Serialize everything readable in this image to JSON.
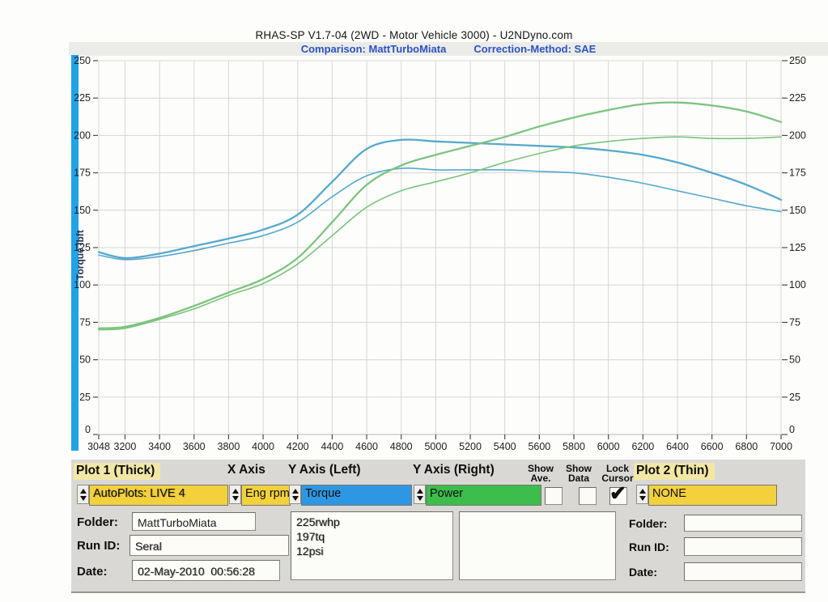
{
  "window": {
    "title": "RHAS-SP V1.7-04   (2WD - Motor Vehicle 3000) - U2NDyno.com",
    "comparison": "Comparison: MattTurboMiata",
    "correction": "Correction-Method: SAE"
  },
  "chart_data": {
    "type": "line",
    "xlabel": "Eng rpm",
    "ylabel_left": "Torque lbft",
    "ylabel_right": "Power",
    "xlim": [
      3048,
      7000
    ],
    "ylim": [
      0,
      250
    ],
    "grid": true,
    "legend": false,
    "x_ticks": [
      3048,
      3200,
      3400,
      3600,
      3800,
      4000,
      4200,
      4400,
      4600,
      4800,
      5000,
      5200,
      5400,
      5600,
      5800,
      6000,
      6200,
      6400,
      6600,
      6800,
      7000
    ],
    "y_ticks": [
      0,
      25,
      50,
      75,
      100,
      125,
      150,
      175,
      200,
      225,
      250
    ],
    "x": [
      3048,
      3200,
      3400,
      3600,
      3800,
      4000,
      4200,
      4400,
      4600,
      4800,
      5000,
      5200,
      5400,
      5600,
      5800,
      6000,
      6200,
      6400,
      6600,
      6800,
      7000
    ],
    "series": [
      {
        "name": "torque-run1-thick",
        "axis": "left",
        "color": "#56a9ce",
        "width": 2.3,
        "values": [
          122,
          118,
          121,
          126,
          131,
          137,
          147,
          169,
          191,
          197,
          196,
          195,
          194,
          193,
          192,
          190,
          187,
          182,
          175,
          167,
          157
        ]
      },
      {
        "name": "torque-run2-thin",
        "axis": "left",
        "color": "#56a9ce",
        "width": 1.6,
        "values": [
          120,
          117,
          119,
          123,
          128,
          133,
          142,
          159,
          173,
          178,
          177,
          177,
          177,
          176,
          175,
          172,
          168,
          163,
          158,
          153,
          149
        ]
      },
      {
        "name": "power-run1-thick",
        "axis": "right",
        "color": "#7cc47f",
        "width": 2.3,
        "values": [
          71,
          72,
          78,
          86,
          95,
          104,
          118,
          142,
          167,
          180,
          187,
          193,
          199,
          206,
          212,
          217,
          221,
          222,
          220,
          216,
          209
        ]
      },
      {
        "name": "power-run2-thin",
        "axis": "right",
        "color": "#7cc47f",
        "width": 1.6,
        "values": [
          70,
          71,
          77,
          84,
          93,
          101,
          114,
          133,
          152,
          163,
          169,
          175,
          182,
          188,
          193,
          196,
          198,
          199,
          198,
          198,
          199
        ]
      }
    ]
  },
  "panel": {
    "plot1": {
      "header": "Plot 1 (Thick)",
      "value": "AutoPlots: LIVE 4"
    },
    "xaxis": {
      "header": "X Axis",
      "value": "Eng rpm"
    },
    "yleft": {
      "header": "Y Axis (Left)",
      "value": "Torque"
    },
    "yright": {
      "header": "Y Axis (Right)",
      "value": "Power"
    },
    "plot2": {
      "header": "Plot 2 (Thin)",
      "value": "NONE"
    },
    "checkboxes": [
      {
        "line1": "Show",
        "line2": "Ave.",
        "checked": false
      },
      {
        "line1": "Show",
        "line2": "Data",
        "checked": false
      },
      {
        "line1": "Lock",
        "line2": "Cursor",
        "checked": true
      }
    ],
    "run1": {
      "folder_label": "Folder:",
      "folder": "MattTurboMiata",
      "runid_label": "Run ID:",
      "runid": "Seral",
      "date_label": "Date:",
      "date": "02-May-2010  00:56:28"
    },
    "notes_lines": [
      "225rwhp",
      "197tq",
      "12psi"
    ],
    "run2": {
      "folder_label": "Folder:",
      "folder": "",
      "runid_label": "Run ID:",
      "runid": "",
      "date_label": "Date:",
      "date": ""
    }
  },
  "colors": {
    "left_axis_bar": "#21a3e9",
    "select_yellow": "#f2d13c",
    "select_blue": "#2e97e3",
    "select_green": "#3cbd4c",
    "header_highlight": "#f3e7a6",
    "panel_bg": "#d9d8d4",
    "subtitle_blue": "#2b52c4",
    "curve_blue": "#56a9ce",
    "curve_green": "#7cc47f",
    "grid": "#d7d6d3"
  }
}
